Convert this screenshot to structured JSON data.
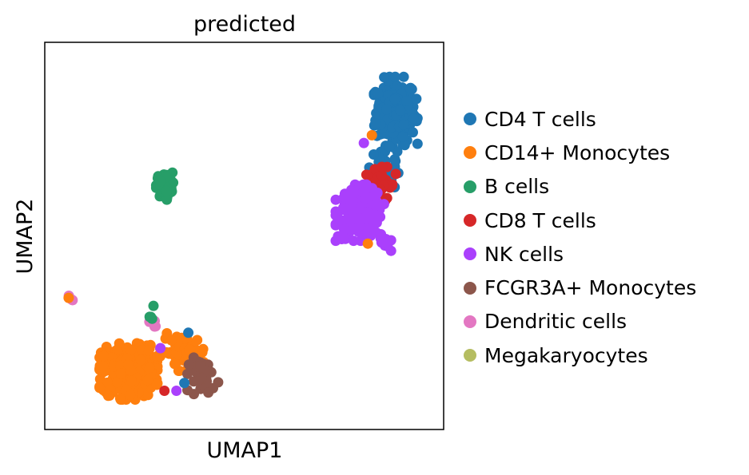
{
  "chart_data": {
    "type": "scatter",
    "title": "predicted",
    "xlabel": "UMAP1",
    "ylabel": "UMAP2",
    "xlim": [
      0,
      1
    ],
    "ylim": [
      0,
      1
    ],
    "grid": false,
    "ticks_shown": false,
    "legend_placement": "right-outside",
    "coordinate_note": "Axes have no ticks; coordinates are normalized (0 = left/bottom, 1 = right/top) and approximate.",
    "categories": [
      {
        "name": "CD4 T cells",
        "color": "#1f77b4"
      },
      {
        "name": "CD14+ Monocytes",
        "color": "#ff7f0e"
      },
      {
        "name": "B cells",
        "color": "#279e68"
      },
      {
        "name": "CD8 T cells",
        "color": "#d62728"
      },
      {
        "name": "NK cells",
        "color": "#aa40fc"
      },
      {
        "name": "FCGR3A+ Monocytes",
        "color": "#8c564b"
      },
      {
        "name": "Dendritic cells",
        "color": "#e377c2"
      },
      {
        "name": "Megakaryocytes",
        "color": "#b5bd61"
      }
    ],
    "clusters": [
      {
        "category": "CD4 T cells",
        "center": [
          0.88,
          0.82
        ],
        "spread": [
          0.045,
          0.075
        ],
        "n": 220
      },
      {
        "category": "CD4 T cells",
        "center": [
          0.85,
          0.67
        ],
        "spread": [
          0.03,
          0.05
        ],
        "n": 45
      },
      {
        "category": "CD8 T cells",
        "center": [
          0.84,
          0.63
        ],
        "spread": [
          0.035,
          0.04
        ],
        "n": 45
      },
      {
        "category": "NK cells",
        "center": [
          0.79,
          0.56
        ],
        "spread": [
          0.05,
          0.06
        ],
        "n": 220
      },
      {
        "category": "NK cells",
        "center": [
          0.85,
          0.48
        ],
        "spread": [
          0.015,
          0.02
        ],
        "n": 10
      },
      {
        "category": "B cells",
        "center": [
          0.3,
          0.63
        ],
        "spread": [
          0.018,
          0.03
        ],
        "n": 90
      },
      {
        "category": "CD14+ Monocytes",
        "center": [
          0.21,
          0.15
        ],
        "spread": [
          0.06,
          0.06
        ],
        "n": 350
      },
      {
        "category": "CD14+ Monocytes",
        "center": [
          0.35,
          0.2
        ],
        "spread": [
          0.05,
          0.04
        ],
        "n": 70
      },
      {
        "category": "FCGR3A+ Monocytes",
        "center": [
          0.4,
          0.14
        ],
        "spread": [
          0.035,
          0.04
        ],
        "n": 35
      },
      {
        "category": "Dendritic cells",
        "center": [
          0.06,
          0.34
        ],
        "spread": [
          0.008,
          0.01
        ],
        "n": 6
      },
      {
        "category": "Dendritic cells",
        "center": [
          0.27,
          0.27
        ],
        "spread": [
          0.008,
          0.015
        ],
        "n": 4
      },
      {
        "category": "B cells",
        "center": [
          0.27,
          0.31
        ],
        "spread": [
          0.006,
          0.02
        ],
        "n": 4
      }
    ],
    "points": [
      {
        "category": "CD14+ Monocytes",
        "x": 0.06,
        "y": 0.34
      },
      {
        "category": "CD14+ Monocytes",
        "x": 0.82,
        "y": 0.76
      },
      {
        "category": "CD14+ Monocytes",
        "x": 0.81,
        "y": 0.48
      },
      {
        "category": "NK cells",
        "x": 0.8,
        "y": 0.74
      },
      {
        "category": "NK cells",
        "x": 0.29,
        "y": 0.21
      },
      {
        "category": "NK cells",
        "x": 0.33,
        "y": 0.1
      },
      {
        "category": "CD4 T cells",
        "x": 0.35,
        "y": 0.12
      },
      {
        "category": "CD4 T cells",
        "x": 0.36,
        "y": 0.25
      },
      {
        "category": "CD8 T cells",
        "x": 0.3,
        "y": 0.1
      },
      {
        "category": "CD8 T cells",
        "x": 0.88,
        "y": 0.66
      }
    ]
  }
}
